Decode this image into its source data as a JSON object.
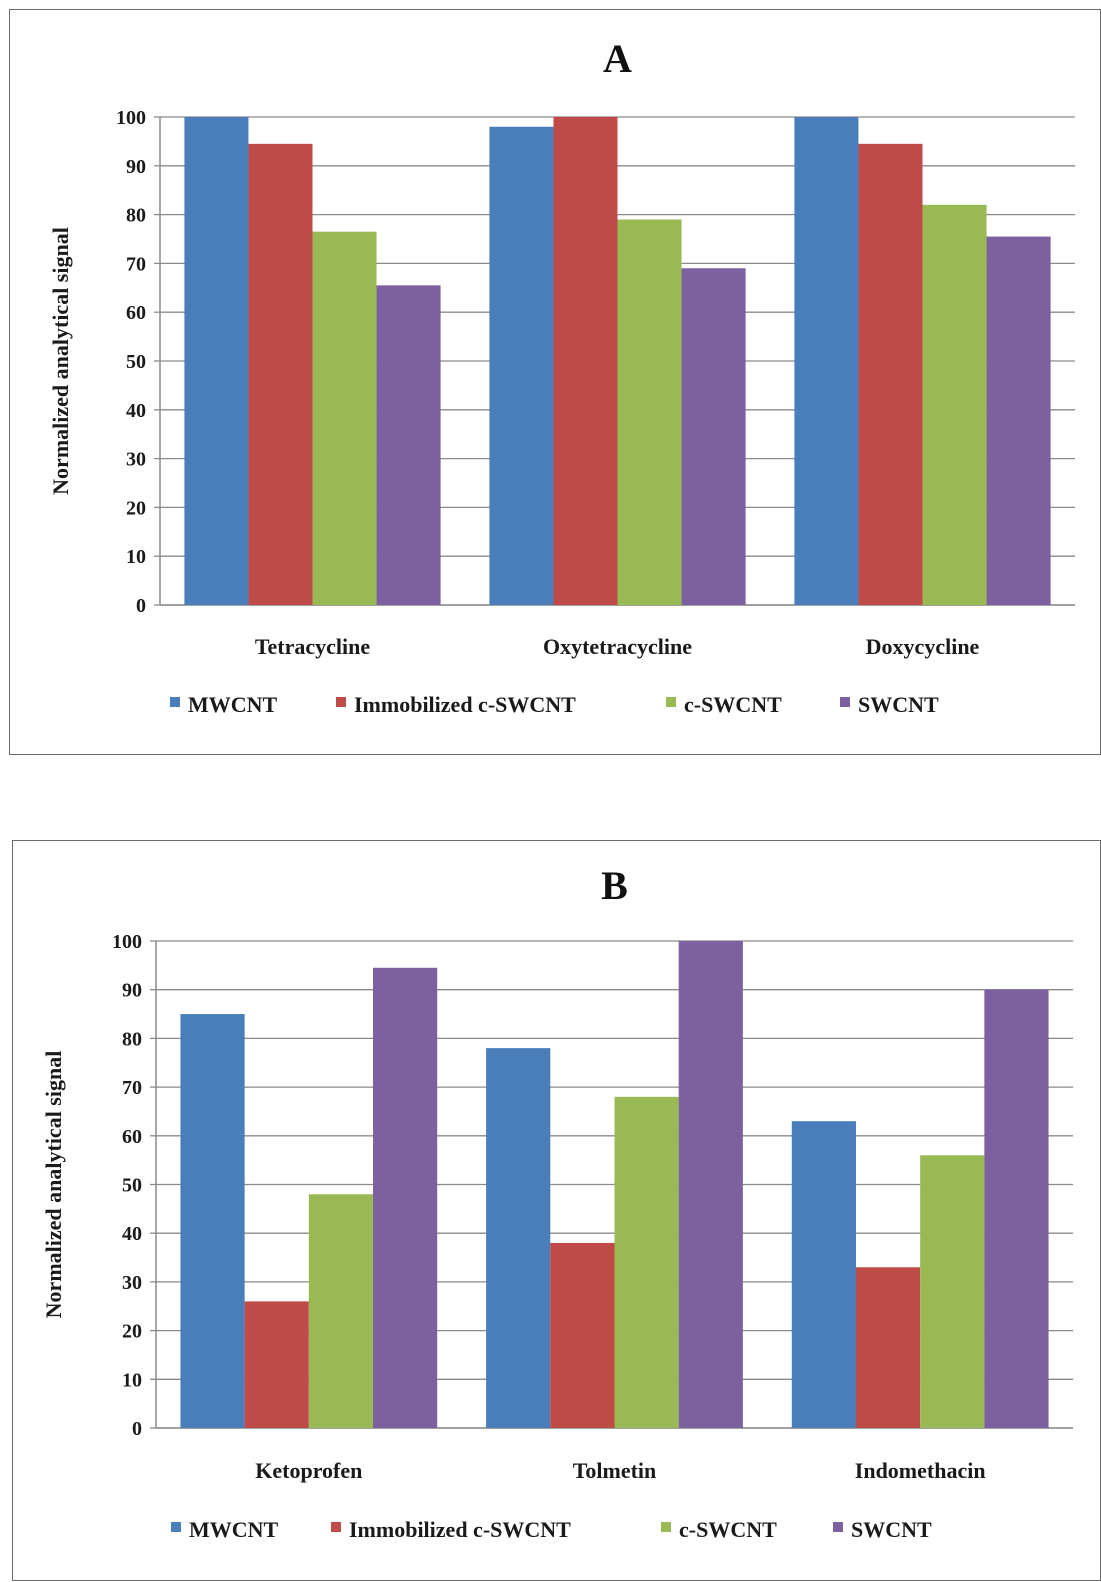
{
  "chart_data": [
    {
      "type": "bar",
      "title": "A",
      "ylabel": "Normalized analytical signal",
      "xlabel": "",
      "ylim": [
        0,
        100
      ],
      "yticks": [
        0,
        10,
        20,
        30,
        40,
        50,
        60,
        70,
        80,
        90,
        100
      ],
      "grid": true,
      "legend": "bottom",
      "categories": [
        "Tetracycline",
        "Oxytetracycline",
        "Doxycycline"
      ],
      "series": [
        {
          "name": "MWCNT",
          "color": "#4a7ebb",
          "values": [
            100,
            98,
            100
          ]
        },
        {
          "name": "Immobilized c-SWCNT",
          "color": "#be4b48",
          "values": [
            94.5,
            100,
            94.5
          ]
        },
        {
          "name": "c-SWCNT",
          "color": "#98b954",
          "values": [
            76.5,
            79,
            82
          ]
        },
        {
          "name": "SWCNT",
          "color": "#7d60a0",
          "values": [
            65.5,
            69,
            75.5
          ]
        }
      ]
    },
    {
      "type": "bar",
      "title": "B",
      "ylabel": "Normalized analytical signal",
      "xlabel": "",
      "ylim": [
        0,
        100
      ],
      "yticks": [
        0,
        10,
        20,
        30,
        40,
        50,
        60,
        70,
        80,
        90,
        100
      ],
      "grid": true,
      "legend": "bottom",
      "categories": [
        "Ketoprofen",
        "Tolmetin",
        "Indomethacin"
      ],
      "series": [
        {
          "name": "MWCNT",
          "color": "#4a7ebb",
          "values": [
            85,
            78,
            63
          ]
        },
        {
          "name": "Immobilized c-SWCNT",
          "color": "#be4b48",
          "values": [
            26,
            38,
            33
          ]
        },
        {
          "name": "c-SWCNT",
          "color": "#98b954",
          "values": [
            48,
            68,
            56
          ]
        },
        {
          "name": "SWCNT",
          "color": "#7d60a0",
          "values": [
            94.5,
            100,
            90
          ]
        }
      ]
    }
  ]
}
